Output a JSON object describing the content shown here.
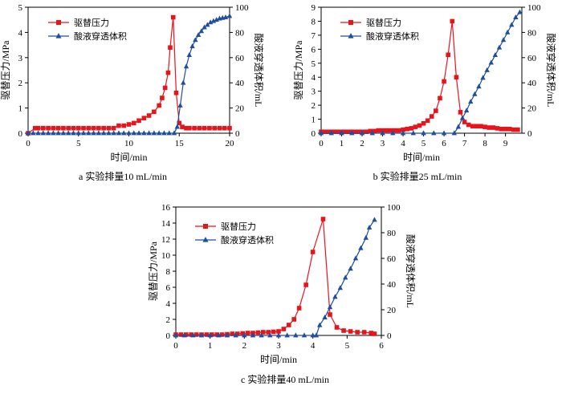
{
  "colors": {
    "pressure": "#e8141c",
    "volume": "#1f4e9c",
    "axis": "#000000"
  },
  "chart_data": [
    {
      "id": "a",
      "type": "line",
      "caption": "a  实验排量10 mL/min",
      "xlabel": "时间/min",
      "ylabel_left": "驱替压力/MPa",
      "ylabel_right": "酸液穿透体积/mL",
      "xlim": [
        0,
        20
      ],
      "xticks": [
        0,
        5,
        10,
        15,
        20
      ],
      "ylim_left": [
        0,
        5
      ],
      "yticks_left": [
        0,
        1,
        2,
        3,
        4,
        5
      ],
      "ylim_right": [
        0,
        100
      ],
      "yticks_right": [
        0,
        20,
        40,
        60,
        80,
        100
      ],
      "series": [
        {
          "name": "驱替压力",
          "axis": "left",
          "marker": "square",
          "color_key": "pressure",
          "x": [
            0,
            0.7,
            1,
            1.5,
            2,
            2.5,
            3,
            3.5,
            4,
            4.5,
            5,
            5.5,
            6,
            6.5,
            7,
            7.5,
            8,
            8.5,
            9,
            9.5,
            10,
            10.5,
            11,
            11.5,
            12,
            12.5,
            13,
            13.3,
            13.6,
            13.9,
            14.1,
            14.4,
            14.7,
            15,
            15.3,
            15.7,
            16,
            16.5,
            17,
            17.5,
            18,
            18.5,
            19,
            19.5,
            20
          ],
          "y": [
            0.0,
            0.2,
            0.2,
            0.2,
            0.2,
            0.2,
            0.2,
            0.2,
            0.2,
            0.2,
            0.2,
            0.2,
            0.2,
            0.2,
            0.2,
            0.2,
            0.2,
            0.2,
            0.3,
            0.3,
            0.35,
            0.4,
            0.5,
            0.6,
            0.7,
            0.85,
            1.1,
            1.4,
            1.8,
            2.4,
            3.4,
            4.6,
            1.6,
            0.4,
            0.25,
            0.2,
            0.2,
            0.2,
            0.2,
            0.2,
            0.2,
            0.2,
            0.2,
            0.2,
            0.2
          ]
        },
        {
          "name": "酸液穿透体积",
          "axis": "right",
          "marker": "triangle",
          "color_key": "volume",
          "x": [
            0,
            0.5,
            1,
            1.5,
            2,
            2.5,
            3,
            3.5,
            4,
            4.5,
            5,
            5.5,
            6,
            6.5,
            7,
            7.5,
            8,
            8.5,
            9,
            9.5,
            10,
            10.5,
            11,
            11.5,
            12,
            12.5,
            13,
            13.5,
            14,
            14.5,
            14.8,
            15.1,
            15.4,
            15.7,
            16,
            16.3,
            16.6,
            16.9,
            17.2,
            17.5,
            17.8,
            18.1,
            18.4,
            18.7,
            19,
            19.3,
            19.6,
            20
          ],
          "y": [
            0,
            0,
            0,
            0,
            0,
            0,
            0,
            0,
            0,
            0,
            0,
            0,
            0,
            0,
            0,
            0,
            0,
            0,
            0,
            0,
            0,
            0,
            0,
            0,
            0,
            0,
            0,
            0,
            0,
            0,
            5,
            22,
            40,
            53,
            62,
            69,
            74,
            78,
            81,
            84,
            86,
            88,
            89,
            90,
            91,
            91.5,
            92,
            93
          ]
        }
      ]
    },
    {
      "id": "b",
      "type": "line",
      "caption": "b  实验排量25 mL/min",
      "xlabel": "时间/min",
      "ylabel_left": "驱替压力/MPa",
      "ylabel_right": "酸液穿透体积/mL",
      "xlim": [
        0,
        9.8
      ],
      "xticks": [
        0,
        1,
        2,
        3,
        4,
        5,
        6,
        7,
        8,
        9
      ],
      "ylim_left": [
        0,
        9
      ],
      "yticks_left": [
        0,
        1,
        2,
        3,
        4,
        5,
        6,
        7,
        8,
        9
      ],
      "ylim_right": [
        0,
        100
      ],
      "yticks_right": [
        0,
        20,
        40,
        60,
        80,
        100
      ],
      "series": [
        {
          "name": "驱替压力",
          "axis": "left",
          "marker": "square",
          "color_key": "pressure",
          "x": [
            0,
            0.2,
            0.4,
            0.6,
            0.8,
            1,
            1.2,
            1.4,
            1.6,
            1.8,
            2,
            2.2,
            2.4,
            2.6,
            2.8,
            3,
            3.2,
            3.4,
            3.6,
            3.8,
            4,
            4.2,
            4.4,
            4.6,
            4.8,
            5,
            5.2,
            5.4,
            5.6,
            5.8,
            6,
            6.2,
            6.4,
            6.6,
            6.8,
            7,
            7.2,
            7.4,
            7.6,
            7.8,
            8,
            8.2,
            8.4,
            8.6,
            8.8,
            9,
            9.2,
            9.4,
            9.6
          ],
          "y": [
            0.1,
            0.1,
            0.1,
            0.1,
            0.1,
            0.1,
            0.1,
            0.1,
            0.1,
            0.1,
            0.1,
            0.1,
            0.15,
            0.15,
            0.2,
            0.2,
            0.2,
            0.2,
            0.2,
            0.2,
            0.25,
            0.3,
            0.35,
            0.45,
            0.55,
            0.7,
            0.9,
            1.2,
            1.6,
            2.5,
            3.7,
            5.6,
            8.0,
            4.0,
            1.5,
            0.8,
            0.6,
            0.5,
            0.5,
            0.5,
            0.45,
            0.4,
            0.4,
            0.35,
            0.3,
            0.3,
            0.3,
            0.25,
            0.25
          ]
        },
        {
          "name": "酸液穿透体积",
          "axis": "right",
          "marker": "triangle",
          "color_key": "volume",
          "x": [
            0,
            0.5,
            1,
            1.5,
            2,
            2.5,
            3,
            3.5,
            4,
            4.5,
            5,
            5.5,
            6,
            6.5,
            6.7,
            6.9,
            7.1,
            7.3,
            7.5,
            7.7,
            7.9,
            8.1,
            8.3,
            8.5,
            8.7,
            8.9,
            9.1,
            9.3,
            9.5,
            9.7
          ],
          "y": [
            0,
            0,
            0,
            0,
            0,
            0,
            0,
            0,
            0,
            0,
            0,
            0,
            0,
            0,
            5,
            12,
            18,
            25,
            31,
            37,
            44,
            50,
            56,
            62,
            68,
            74,
            80,
            86,
            92,
            96
          ]
        }
      ]
    },
    {
      "id": "c",
      "type": "line",
      "caption": "c  实验排量40 mL/min",
      "xlabel": "时间/min",
      "ylabel_left": "驱替压力/MPa",
      "ylabel_right": "酸液穿透体积/mL",
      "xlim": [
        0,
        6
      ],
      "xticks": [
        0,
        1,
        2,
        3,
        4,
        5,
        6
      ],
      "ylim_left": [
        0,
        16
      ],
      "yticks_left": [
        0,
        2,
        4,
        6,
        8,
        10,
        12,
        14,
        16
      ],
      "ylim_right": [
        0,
        100
      ],
      "yticks_right": [
        0,
        20,
        40,
        60,
        80,
        100
      ],
      "series": [
        {
          "name": "驱替压力",
          "axis": "left",
          "marker": "square",
          "color_key": "pressure",
          "x": [
            0,
            0.15,
            0.3,
            0.45,
            0.6,
            0.75,
            0.9,
            1.05,
            1.2,
            1.35,
            1.5,
            1.65,
            1.8,
            1.95,
            2.1,
            2.25,
            2.4,
            2.55,
            2.7,
            2.85,
            3.0,
            3.15,
            3.3,
            3.45,
            3.6,
            3.8,
            4.0,
            4.3,
            4.5,
            4.7,
            4.9,
            5.1,
            5.3,
            5.5,
            5.7,
            5.8
          ],
          "y": [
            0.1,
            0.1,
            0.1,
            0.1,
            0.1,
            0.1,
            0.1,
            0.1,
            0.1,
            0.1,
            0.15,
            0.2,
            0.2,
            0.25,
            0.3,
            0.3,
            0.35,
            0.4,
            0.4,
            0.45,
            0.5,
            0.8,
            1.3,
            2.0,
            3.4,
            6.3,
            10.4,
            14.5,
            2.6,
            1.0,
            0.6,
            0.5,
            0.4,
            0.4,
            0.3,
            0.2
          ]
        },
        {
          "name": "酸液穿透体积",
          "axis": "right",
          "marker": "triangle",
          "color_key": "volume",
          "x": [
            0,
            0.25,
            0.5,
            0.75,
            1,
            1.25,
            1.5,
            1.75,
            2,
            2.25,
            2.5,
            2.75,
            3,
            3.25,
            3.5,
            3.75,
            4.0,
            4.1,
            4.2,
            4.35,
            4.5,
            4.65,
            4.8,
            4.95,
            5.1,
            5.25,
            5.4,
            5.55,
            5.65,
            5.8
          ],
          "y": [
            0,
            0,
            0,
            0,
            0,
            0,
            0,
            0,
            0,
            0,
            0,
            0,
            0,
            0,
            0,
            0,
            0,
            0,
            8,
            14,
            22,
            30,
            37,
            45,
            52,
            60,
            68,
            76,
            84,
            90
          ]
        }
      ]
    }
  ]
}
